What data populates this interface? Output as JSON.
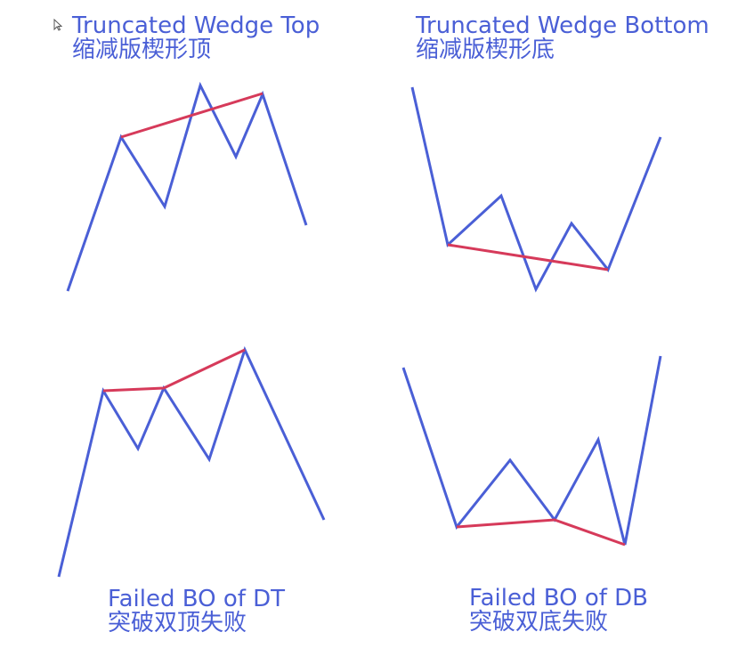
{
  "panels": {
    "top_left": {
      "title_en": "Truncated Wedge Top",
      "title_zh": "缩减版楔形顶"
    },
    "top_right": {
      "title_en": "Truncated Wedge Bottom",
      "title_zh": "缩减版楔形底"
    },
    "bottom_left": {
      "title_en": "Failed BO of DT",
      "title_zh": "突破双顶失败"
    },
    "bottom_right": {
      "title_en": "Failed BO of DB",
      "title_zh": "突破双底失败"
    }
  },
  "colors": {
    "price_line": "#4a5fd6",
    "trend_line": "#d63a5a",
    "title_text": "#4a5fd6",
    "cursor": "#555555"
  },
  "icons": {
    "cursor": "mouse-pointer-icon"
  }
}
